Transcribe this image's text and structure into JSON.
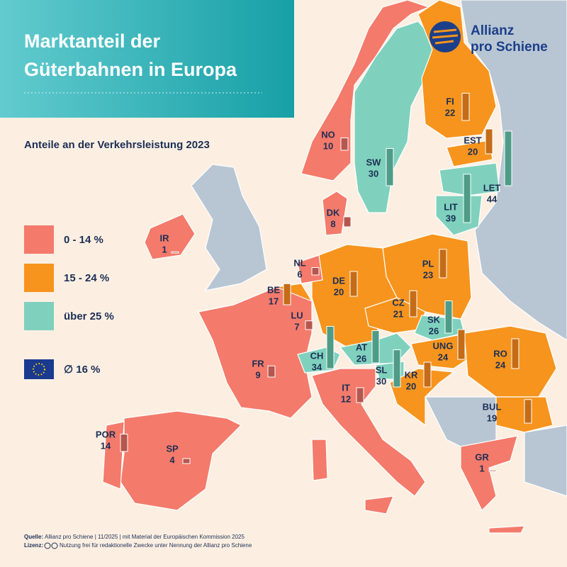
{
  "header": {
    "title_lines": [
      "Marktanteil der",
      "Güterbahnen in Europa"
    ],
    "subtitle": "Anteile an der Verkehrsleistung 2023"
  },
  "logo": {
    "lines": [
      "Allianz",
      "pro Schiene"
    ]
  },
  "legend": {
    "groups": [
      {
        "label": "0 - 14 %",
        "color": "#f47a6b",
        "bar_color": "#b5574e"
      },
      {
        "label": "15 - 24 %",
        "color": "#f7941d",
        "bar_color": "#c46c17"
      },
      {
        "label": "über 25 %",
        "color": "#7fd1bd",
        "bar_color": "#4e9c87"
      }
    ],
    "eu_average": "∅ 16 %"
  },
  "countries": [
    {
      "code": "NO",
      "value": 10,
      "group": 0
    },
    {
      "code": "SW",
      "value": 30,
      "group": 2
    },
    {
      "code": "FI",
      "value": 22,
      "group": 1
    },
    {
      "code": "EST",
      "value": 20,
      "group": 1
    },
    {
      "code": "LET",
      "value": 44,
      "group": 2
    },
    {
      "code": "LIT",
      "value": 39,
      "group": 2
    },
    {
      "code": "DK",
      "value": 8,
      "group": 0
    },
    {
      "code": "IR",
      "value": 1,
      "group": 0
    },
    {
      "code": "NL",
      "value": 6,
      "group": 0
    },
    {
      "code": "PL",
      "value": 23,
      "group": 1
    },
    {
      "code": "DE",
      "value": 20,
      "group": 1
    },
    {
      "code": "BE",
      "value": 17,
      "group": 1
    },
    {
      "code": "CZ",
      "value": 21,
      "group": 1
    },
    {
      "code": "LU",
      "value": 7,
      "group": 0
    },
    {
      "code": "SK",
      "value": 26,
      "group": 2
    },
    {
      "code": "FR",
      "value": 9,
      "group": 0
    },
    {
      "code": "CH",
      "value": 34,
      "group": 2
    },
    {
      "code": "AT",
      "value": 26,
      "group": 2
    },
    {
      "code": "UNG",
      "value": 24,
      "group": 1
    },
    {
      "code": "RO",
      "value": 24,
      "group": 1
    },
    {
      "code": "SL",
      "value": 30,
      "group": 2
    },
    {
      "code": "KR",
      "value": 20,
      "group": 1
    },
    {
      "code": "IT",
      "value": 12,
      "group": 0
    },
    {
      "code": "BUL",
      "value": 19,
      "group": 1
    },
    {
      "code": "POR",
      "value": 14,
      "group": 0
    },
    {
      "code": "SP",
      "value": 4,
      "group": 0
    },
    {
      "code": "GR",
      "value": 1,
      "group": 0
    }
  ],
  "footer": {
    "source_label": "Quelle:",
    "source": "Allianz pro Schiene | 11/2025 | mit Material der Europäischen Kommission 2025",
    "license_label": "Lizenz:",
    "license": "Nutzung frei für redaktionelle Zwecke unter Nennung der Allianz pro Schiene"
  }
}
